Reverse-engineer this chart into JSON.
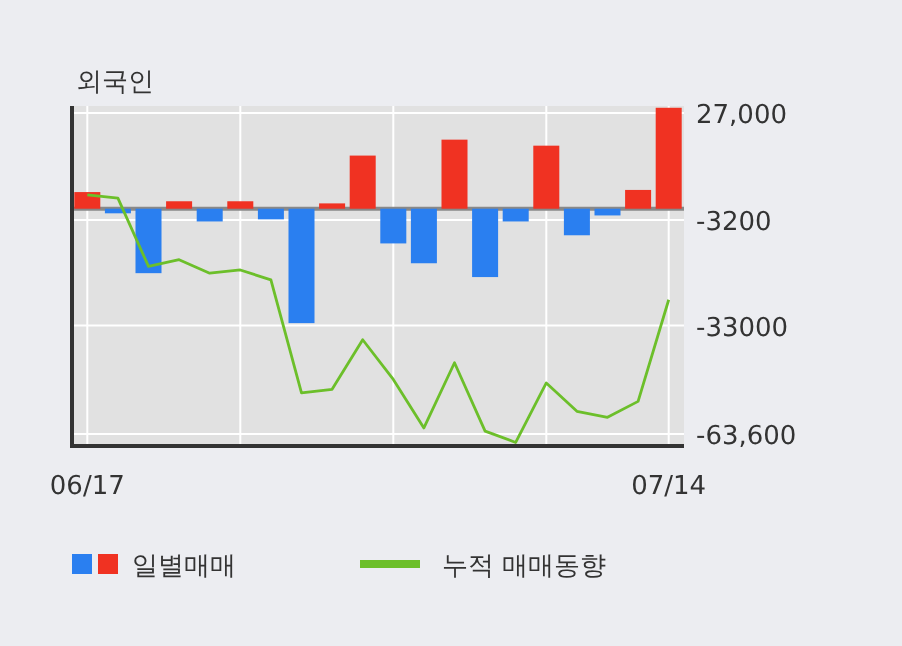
{
  "chart_data": {
    "type": "bar",
    "title": "외국인",
    "categories": [
      "06/17",
      null,
      null,
      null,
      null,
      null,
      null,
      null,
      null,
      null,
      null,
      null,
      null,
      null,
      null,
      null,
      null,
      null,
      null,
      "07/14"
    ],
    "series": [
      {
        "name": "일별매매",
        "values": [
          4700,
          -1300,
          -18200,
          2100,
          -3600,
          2100,
          -3000,
          -32300,
          1500,
          15000,
          -9800,
          -15400,
          19500,
          -19300,
          -3600,
          17800,
          -7500,
          -1900,
          5300,
          28500
        ],
        "colors": [
          "#f03222",
          "#2a7ff0",
          "#2a7ff0",
          "#f03222",
          "#2a7ff0",
          "#f03222",
          "#2a7ff0",
          "#2a7ff0",
          "#f03222",
          "#f03222",
          "#2a7ff0",
          "#2a7ff0",
          "#f03222",
          "#2a7ff0",
          "#2a7ff0",
          "#f03222",
          "#2a7ff0",
          "#2a7ff0",
          "#f03222",
          "#f03222"
        ]
      },
      {
        "name": "누적 매매동향",
        "type": "line",
        "color": "#6cbf2a",
        "values": [
          3900,
          3000,
          -16300,
          -14400,
          -18200,
          -17300,
          -20100,
          -52000,
          -51000,
          -37000,
          -48200,
          -61900,
          -43500,
          -62800,
          -66000,
          -49200,
          -57200,
          -58900,
          -54400,
          -25700
        ]
      }
    ],
    "ylim": [
      -67000,
      29000
    ],
    "yticks": [
      {
        "value": 27000,
        "label": "27,000"
      },
      -3200,
      -33000,
      {
        "value": -63600,
        "label": "-63,600"
      }
    ],
    "grid": true,
    "legend": "bottom"
  }
}
